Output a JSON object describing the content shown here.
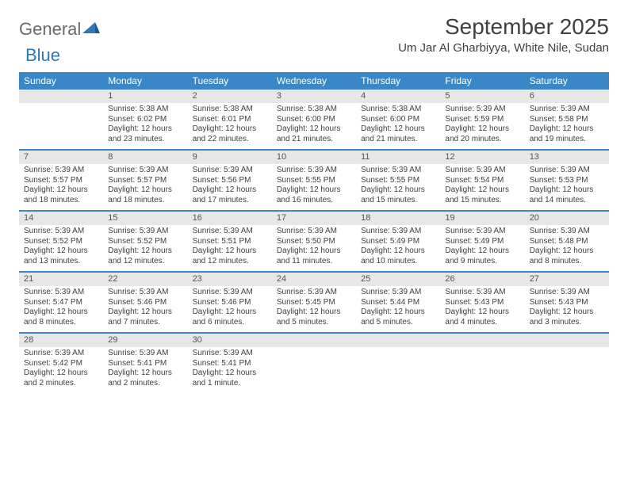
{
  "logo": {
    "part1": "General",
    "part2": "Blue"
  },
  "title": "September 2025",
  "location": "Um Jar Al Gharbiyya, White Nile, Sudan",
  "colors": {
    "header_bg": "#3a87c7",
    "header_text": "#ffffff",
    "daynum_bg": "#e7e7e7",
    "rule": "#3a87c7",
    "text": "#404040",
    "logo_gray": "#6a6a6a",
    "logo_blue": "#2f77b5"
  },
  "day_names": [
    "Sunday",
    "Monday",
    "Tuesday",
    "Wednesday",
    "Thursday",
    "Friday",
    "Saturday"
  ],
  "weeks": [
    [
      {
        "n": "",
        "sr": "",
        "ss": "",
        "dl": ""
      },
      {
        "n": "1",
        "sr": "5:38 AM",
        "ss": "6:02 PM",
        "dl": "12 hours and 23 minutes."
      },
      {
        "n": "2",
        "sr": "5:38 AM",
        "ss": "6:01 PM",
        "dl": "12 hours and 22 minutes."
      },
      {
        "n": "3",
        "sr": "5:38 AM",
        "ss": "6:00 PM",
        "dl": "12 hours and 21 minutes."
      },
      {
        "n": "4",
        "sr": "5:38 AM",
        "ss": "6:00 PM",
        "dl": "12 hours and 21 minutes."
      },
      {
        "n": "5",
        "sr": "5:39 AM",
        "ss": "5:59 PM",
        "dl": "12 hours and 20 minutes."
      },
      {
        "n": "6",
        "sr": "5:39 AM",
        "ss": "5:58 PM",
        "dl": "12 hours and 19 minutes."
      }
    ],
    [
      {
        "n": "7",
        "sr": "5:39 AM",
        "ss": "5:57 PM",
        "dl": "12 hours and 18 minutes."
      },
      {
        "n": "8",
        "sr": "5:39 AM",
        "ss": "5:57 PM",
        "dl": "12 hours and 18 minutes."
      },
      {
        "n": "9",
        "sr": "5:39 AM",
        "ss": "5:56 PM",
        "dl": "12 hours and 17 minutes."
      },
      {
        "n": "10",
        "sr": "5:39 AM",
        "ss": "5:55 PM",
        "dl": "12 hours and 16 minutes."
      },
      {
        "n": "11",
        "sr": "5:39 AM",
        "ss": "5:55 PM",
        "dl": "12 hours and 15 minutes."
      },
      {
        "n": "12",
        "sr": "5:39 AM",
        "ss": "5:54 PM",
        "dl": "12 hours and 15 minutes."
      },
      {
        "n": "13",
        "sr": "5:39 AM",
        "ss": "5:53 PM",
        "dl": "12 hours and 14 minutes."
      }
    ],
    [
      {
        "n": "14",
        "sr": "5:39 AM",
        "ss": "5:52 PM",
        "dl": "12 hours and 13 minutes."
      },
      {
        "n": "15",
        "sr": "5:39 AM",
        "ss": "5:52 PM",
        "dl": "12 hours and 12 minutes."
      },
      {
        "n": "16",
        "sr": "5:39 AM",
        "ss": "5:51 PM",
        "dl": "12 hours and 12 minutes."
      },
      {
        "n": "17",
        "sr": "5:39 AM",
        "ss": "5:50 PM",
        "dl": "12 hours and 11 minutes."
      },
      {
        "n": "18",
        "sr": "5:39 AM",
        "ss": "5:49 PM",
        "dl": "12 hours and 10 minutes."
      },
      {
        "n": "19",
        "sr": "5:39 AM",
        "ss": "5:49 PM",
        "dl": "12 hours and 9 minutes."
      },
      {
        "n": "20",
        "sr": "5:39 AM",
        "ss": "5:48 PM",
        "dl": "12 hours and 8 minutes."
      }
    ],
    [
      {
        "n": "21",
        "sr": "5:39 AM",
        "ss": "5:47 PM",
        "dl": "12 hours and 8 minutes."
      },
      {
        "n": "22",
        "sr": "5:39 AM",
        "ss": "5:46 PM",
        "dl": "12 hours and 7 minutes."
      },
      {
        "n": "23",
        "sr": "5:39 AM",
        "ss": "5:46 PM",
        "dl": "12 hours and 6 minutes."
      },
      {
        "n": "24",
        "sr": "5:39 AM",
        "ss": "5:45 PM",
        "dl": "12 hours and 5 minutes."
      },
      {
        "n": "25",
        "sr": "5:39 AM",
        "ss": "5:44 PM",
        "dl": "12 hours and 5 minutes."
      },
      {
        "n": "26",
        "sr": "5:39 AM",
        "ss": "5:43 PM",
        "dl": "12 hours and 4 minutes."
      },
      {
        "n": "27",
        "sr": "5:39 AM",
        "ss": "5:43 PM",
        "dl": "12 hours and 3 minutes."
      }
    ],
    [
      {
        "n": "28",
        "sr": "5:39 AM",
        "ss": "5:42 PM",
        "dl": "12 hours and 2 minutes."
      },
      {
        "n": "29",
        "sr": "5:39 AM",
        "ss": "5:41 PM",
        "dl": "12 hours and 2 minutes."
      },
      {
        "n": "30",
        "sr": "5:39 AM",
        "ss": "5:41 PM",
        "dl": "12 hours and 1 minute."
      },
      {
        "n": "",
        "sr": "",
        "ss": "",
        "dl": ""
      },
      {
        "n": "",
        "sr": "",
        "ss": "",
        "dl": ""
      },
      {
        "n": "",
        "sr": "",
        "ss": "",
        "dl": ""
      },
      {
        "n": "",
        "sr": "",
        "ss": "",
        "dl": ""
      }
    ]
  ],
  "labels": {
    "sunrise": "Sunrise:",
    "sunset": "Sunset:",
    "daylight": "Daylight:"
  }
}
